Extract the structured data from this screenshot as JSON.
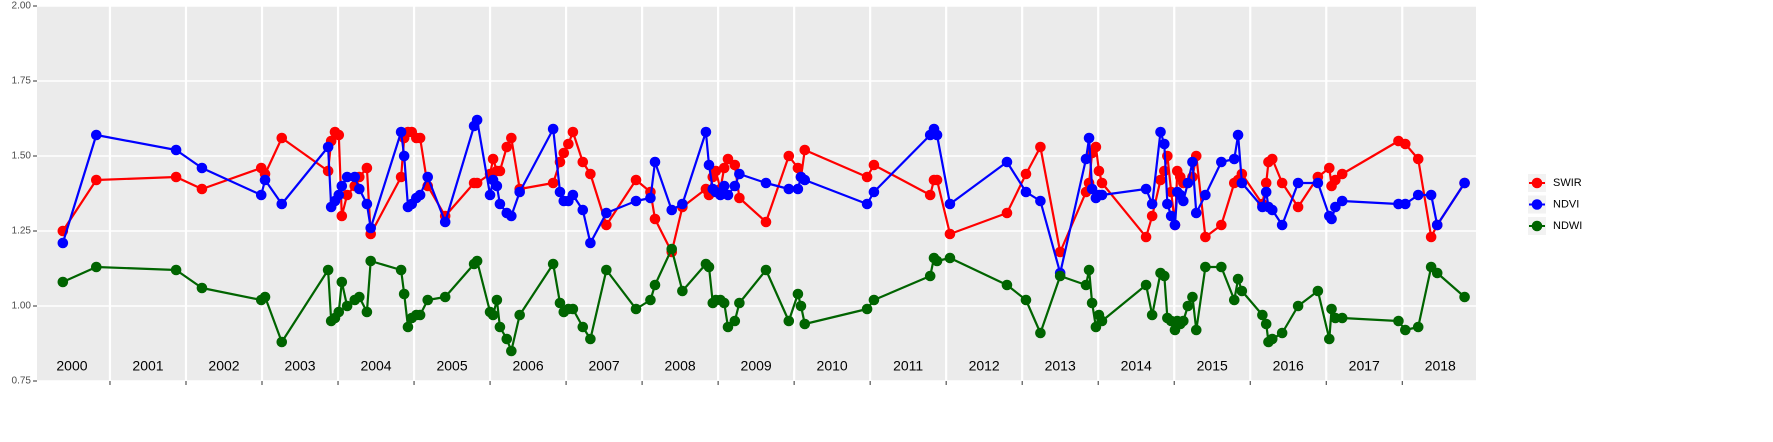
{
  "chart_data": {
    "type": "line",
    "x": [
      2000.38,
      2000.82,
      2001.87,
      2002.21,
      2002.99,
      2003.04,
      2003.26,
      2003.87,
      2003.91,
      2003.96,
      2004.01,
      2004.05,
      2004.12,
      2004.22,
      2004.28,
      2004.38,
      2004.43,
      2004.83,
      2004.87,
      2004.92,
      2004.97,
      2005.03,
      2005.08,
      2005.18,
      2005.41,
      2005.79,
      2005.83,
      2006.0,
      2006.04,
      2006.09,
      2006.13,
      2006.22,
      2006.28,
      2006.39,
      2006.83,
      2006.92,
      2006.97,
      2007.03,
      2007.09,
      2007.22,
      2007.32,
      2007.53,
      2007.92,
      2008.11,
      2008.17,
      2008.39,
      2008.53,
      2008.84,
      2008.88,
      2008.93,
      2008.97,
      2009.03,
      2009.08,
      2009.13,
      2009.22,
      2009.28,
      2009.63,
      2009.93,
      2010.05,
      2010.09,
      2010.14,
      2010.96,
      2011.05,
      2011.79,
      2011.84,
      2011.88,
      2012.05,
      2012.8,
      2013.05,
      2013.24,
      2013.5,
      2013.84,
      2013.88,
      2013.92,
      2013.97,
      2014.01,
      2014.05,
      2014.63,
      2014.71,
      2014.82,
      2014.87,
      2014.91,
      2014.96,
      2015.01,
      2015.04,
      2015.08,
      2015.12,
      2015.18,
      2015.24,
      2015.29,
      2015.41,
      2015.62,
      2015.79,
      2015.84,
      2015.89,
      2016.16,
      2016.21,
      2016.24,
      2016.29,
      2016.42,
      2016.63,
      2016.89,
      2017.04,
      2017.07,
      2017.12,
      2017.21,
      2017.95,
      2018.04,
      2018.21,
      2018.38,
      2018.46,
      2018.82
    ],
    "series": [
      {
        "name": "SWIR",
        "color": "#ff0000",
        "values": [
          1.25,
          1.42,
          1.43,
          1.39,
          1.46,
          1.44,
          1.56,
          1.45,
          1.55,
          1.58,
          1.57,
          1.3,
          1.37,
          1.4,
          1.43,
          1.46,
          1.24,
          1.43,
          1.56,
          1.58,
          1.58,
          1.56,
          1.56,
          1.4,
          1.3,
          1.41,
          1.41,
          1.44,
          1.49,
          1.45,
          1.45,
          1.53,
          1.56,
          1.39,
          1.41,
          1.48,
          1.51,
          1.54,
          1.58,
          1.48,
          1.44,
          1.27,
          1.42,
          1.38,
          1.29,
          1.18,
          1.33,
          1.39,
          1.37,
          1.43,
          1.45,
          1.39,
          1.46,
          1.49,
          1.47,
          1.36,
          1.28,
          1.5,
          1.46,
          1.43,
          1.52,
          1.43,
          1.47,
          1.37,
          1.42,
          1.42,
          1.24,
          1.31,
          1.44,
          1.53,
          1.18,
          1.38,
          1.41,
          1.51,
          1.53,
          1.45,
          1.41,
          1.23,
          1.3,
          1.42,
          1.45,
          1.5,
          1.38,
          1.27,
          1.45,
          1.43,
          1.41,
          1.41,
          1.43,
          1.5,
          1.23,
          1.27,
          1.41,
          1.42,
          1.44,
          1.34,
          1.41,
          1.48,
          1.49,
          1.41,
          1.33,
          1.43,
          1.46,
          1.4,
          1.42,
          1.44,
          1.55,
          1.54,
          1.49,
          1.23,
          1.27,
          1.41
        ]
      },
      {
        "name": "NDVI",
        "color": "#0000ff",
        "values": [
          1.21,
          1.57,
          1.52,
          1.46,
          1.37,
          1.42,
          1.34,
          1.53,
          1.33,
          1.35,
          1.37,
          1.4,
          1.43,
          1.43,
          1.39,
          1.34,
          1.26,
          1.58,
          1.5,
          1.33,
          1.34,
          1.36,
          1.37,
          1.43,
          1.28,
          1.6,
          1.62,
          1.37,
          1.42,
          1.4,
          1.34,
          1.31,
          1.3,
          1.38,
          1.59,
          1.38,
          1.35,
          1.35,
          1.37,
          1.32,
          1.21,
          1.31,
          1.35,
          1.36,
          1.48,
          1.32,
          1.34,
          1.58,
          1.47,
          1.39,
          1.38,
          1.37,
          1.4,
          1.37,
          1.4,
          1.44,
          1.41,
          1.39,
          1.39,
          1.43,
          1.42,
          1.34,
          1.38,
          1.57,
          1.59,
          1.57,
          1.34,
          1.48,
          1.38,
          1.35,
          1.11,
          1.49,
          1.56,
          1.39,
          1.36,
          1.37,
          1.37,
          1.39,
          1.34,
          1.58,
          1.54,
          1.34,
          1.3,
          1.27,
          1.38,
          1.37,
          1.35,
          1.41,
          1.48,
          1.31,
          1.37,
          1.48,
          1.49,
          1.57,
          1.41,
          1.33,
          1.38,
          1.33,
          1.32,
          1.27,
          1.41,
          1.41,
          1.3,
          1.29,
          1.33,
          1.35,
          1.34,
          1.34,
          1.37,
          1.37,
          1.27,
          1.41
        ]
      },
      {
        "name": "NDWI",
        "color": "#006400",
        "values": [
          1.08,
          1.13,
          1.12,
          1.06,
          1.02,
          1.03,
          0.88,
          1.12,
          0.95,
          0.96,
          0.98,
          1.08,
          1.0,
          1.02,
          1.03,
          0.98,
          1.15,
          1.12,
          1.04,
          0.93,
          0.96,
          0.97,
          0.97,
          1.02,
          1.03,
          1.14,
          1.15,
          0.98,
          0.97,
          1.02,
          0.93,
          0.89,
          0.85,
          0.97,
          1.14,
          1.01,
          0.98,
          0.99,
          0.99,
          0.93,
          0.89,
          1.12,
          0.99,
          1.02,
          1.07,
          1.19,
          1.05,
          1.14,
          1.13,
          1.01,
          1.02,
          1.02,
          1.01,
          0.93,
          0.95,
          1.01,
          1.12,
          0.95,
          1.04,
          1.0,
          0.94,
          0.99,
          1.02,
          1.1,
          1.16,
          1.15,
          1.16,
          1.07,
          1.02,
          0.91,
          1.1,
          1.07,
          1.12,
          1.01,
          0.93,
          0.97,
          0.95,
          1.07,
          0.97,
          1.11,
          1.1,
          0.96,
          0.95,
          0.92,
          0.95,
          0.94,
          0.95,
          1.0,
          1.03,
          0.92,
          1.13,
          1.13,
          1.02,
          1.09,
          1.05,
          0.97,
          0.94,
          0.88,
          0.89,
          0.91,
          1.0,
          1.05,
          0.89,
          0.99,
          0.96,
          0.96,
          0.95,
          0.92,
          0.93,
          1.13,
          1.11,
          1.03
        ]
      }
    ],
    "xlim": [
      2000.04,
      2018.97
    ],
    "xticks": [
      2001,
      2002,
      2003,
      2004,
      2005,
      2006,
      2007,
      2008,
      2009,
      2010,
      2011,
      2012,
      2013,
      2014,
      2015,
      2016,
      2017,
      2018
    ],
    "year_labels": [
      {
        "value": 2000.5,
        "label": "2000"
      },
      {
        "value": 2001.5,
        "label": "2001"
      },
      {
        "value": 2002.5,
        "label": "2002"
      },
      {
        "value": 2003.5,
        "label": "2003"
      },
      {
        "value": 2004.5,
        "label": "2004"
      },
      {
        "value": 2005.5,
        "label": "2005"
      },
      {
        "value": 2006.5,
        "label": "2006"
      },
      {
        "value": 2007.5,
        "label": "2007"
      },
      {
        "value": 2008.5,
        "label": "2008"
      },
      {
        "value": 2009.5,
        "label": "2009"
      },
      {
        "value": 2010.5,
        "label": "2010"
      },
      {
        "value": 2011.5,
        "label": "2011"
      },
      {
        "value": 2012.5,
        "label": "2012"
      },
      {
        "value": 2013.5,
        "label": "2013"
      },
      {
        "value": 2014.5,
        "label": "2014"
      },
      {
        "value": 2015.5,
        "label": "2015"
      },
      {
        "value": 2016.5,
        "label": "2016"
      },
      {
        "value": 2017.5,
        "label": "2017"
      },
      {
        "value": 2018.5,
        "label": "2018"
      }
    ],
    "ylim": [
      0.75,
      2.0
    ],
    "yticks": [
      {
        "value": 0.75,
        "label": "0.75"
      },
      {
        "value": 1.0,
        "label": "1.00"
      },
      {
        "value": 1.25,
        "label": "1.25"
      },
      {
        "value": 1.5,
        "label": "1.50"
      },
      {
        "value": 1.75,
        "label": "1.75"
      },
      {
        "value": 2.0,
        "label": "2.00"
      }
    ],
    "grid": true,
    "legend": "right"
  }
}
